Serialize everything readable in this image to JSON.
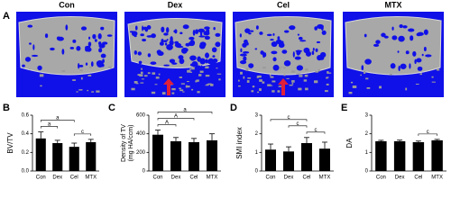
{
  "figure_label": "A",
  "images": [
    {
      "label": "Con"
    },
    {
      "label": "Dex"
    },
    {
      "label": "Cel"
    },
    {
      "label": "MTX"
    }
  ],
  "chart_data": [
    {
      "type": "bar",
      "panel": "B",
      "ylabel": "BV/TV",
      "categories": [
        "Con",
        "Dex",
        "Cel",
        "MTX"
      ],
      "values": [
        0.35,
        0.3,
        0.26,
        0.31
      ],
      "errors": [
        0.07,
        0.03,
        0.04,
        0.03
      ],
      "color": "#000000",
      "ylim": [
        0,
        0.6
      ],
      "yticks": [
        {
          "value": 0,
          "label": "0.0"
        },
        {
          "value": 0.2,
          "label": "0.2"
        },
        {
          "value": 0.4,
          "label": "0.4"
        },
        {
          "value": 0.6,
          "label": "0.6"
        }
      ],
      "brackets": [
        {
          "between": [
            "Cel",
            "MTX"
          ],
          "label": "c"
        },
        {
          "between": [
            "Con",
            "Dex"
          ],
          "label": "a"
        },
        {
          "between": [
            "Con",
            "Cel"
          ],
          "label": "a"
        }
      ]
    },
    {
      "type": "bar",
      "panel": "C",
      "ylabel": "Density of TV (mg HA/ccm)",
      "categories": [
        "Con",
        "Dex",
        "Cel",
        "MTX"
      ],
      "values": [
        390,
        320,
        310,
        330
      ],
      "errors": [
        50,
        40,
        40,
        70
      ],
      "color": "#000000",
      "ylim": [
        0,
        600
      ],
      "yticks": [
        0,
        200,
        400,
        600
      ],
      "brackets": [
        {
          "between": [
            "Con",
            "Dex"
          ],
          "label": "A"
        },
        {
          "between": [
            "Con",
            "Cel"
          ],
          "label": "A"
        },
        {
          "between": [
            "Con",
            "MTX"
          ],
          "label": "a"
        }
      ]
    },
    {
      "type": "bar",
      "panel": "D",
      "ylabel": "SMI index",
      "categories": [
        "Con",
        "Dex",
        "Cel",
        "MTX"
      ],
      "values": [
        1.15,
        1.05,
        1.5,
        1.2
      ],
      "errors": [
        0.3,
        0.25,
        0.3,
        0.35
      ],
      "color": "#000000",
      "ylim": [
        0,
        3
      ],
      "yticks": [
        0,
        1,
        2,
        3
      ],
      "brackets": [
        {
          "between": [
            "Cel",
            "MTX"
          ],
          "label": "c"
        },
        {
          "between": [
            "Dex",
            "Cel"
          ],
          "label": "c"
        },
        {
          "between": [
            "Con",
            "Cel"
          ],
          "label": "c"
        }
      ]
    },
    {
      "type": "bar",
      "panel": "E",
      "ylabel": "DA",
      "categories": [
        "Con",
        "Dex",
        "Cel",
        "MTX"
      ],
      "values": [
        1.6,
        1.6,
        1.55,
        1.65
      ],
      "errors": [
        0.05,
        0.06,
        0.06,
        0.05
      ],
      "color": "#000000",
      "ylim": [
        0,
        3
      ],
      "yticks": [
        0,
        1,
        2,
        3
      ],
      "brackets": [
        {
          "between": [
            "Cel",
            "MTX"
          ],
          "label": "c"
        }
      ]
    }
  ]
}
